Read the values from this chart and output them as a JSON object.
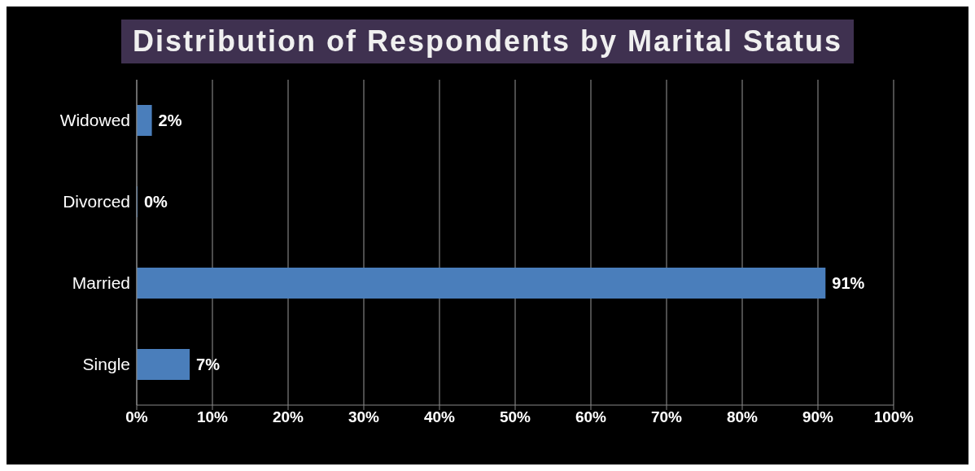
{
  "chart_data": {
    "type": "bar",
    "orientation": "horizontal",
    "title": "Distribution of Respondents by Marital Status",
    "categories": [
      "Widowed",
      "Divorced",
      "Married",
      "Single"
    ],
    "values": [
      2,
      0,
      91,
      7
    ],
    "value_labels": [
      "2%",
      "0%",
      "91%",
      "7%"
    ],
    "color": "#4a7ebb",
    "xlim": [
      0,
      100
    ],
    "xticks": [
      {
        "value": 0,
        "label": "0%"
      },
      {
        "value": 10,
        "label": "10%"
      },
      {
        "value": 20,
        "label": "20%"
      },
      {
        "value": 30,
        "label": "30%"
      },
      {
        "value": 40,
        "label": "40%"
      },
      {
        "value": 50,
        "label": "50%"
      },
      {
        "value": 60,
        "label": "60%"
      },
      {
        "value": 70,
        "label": "70%"
      },
      {
        "value": 80,
        "label": "80%"
      },
      {
        "value": 90,
        "label": "90%"
      },
      {
        "value": 100,
        "label": "100%"
      }
    ],
    "grid": "x",
    "legend": false
  }
}
